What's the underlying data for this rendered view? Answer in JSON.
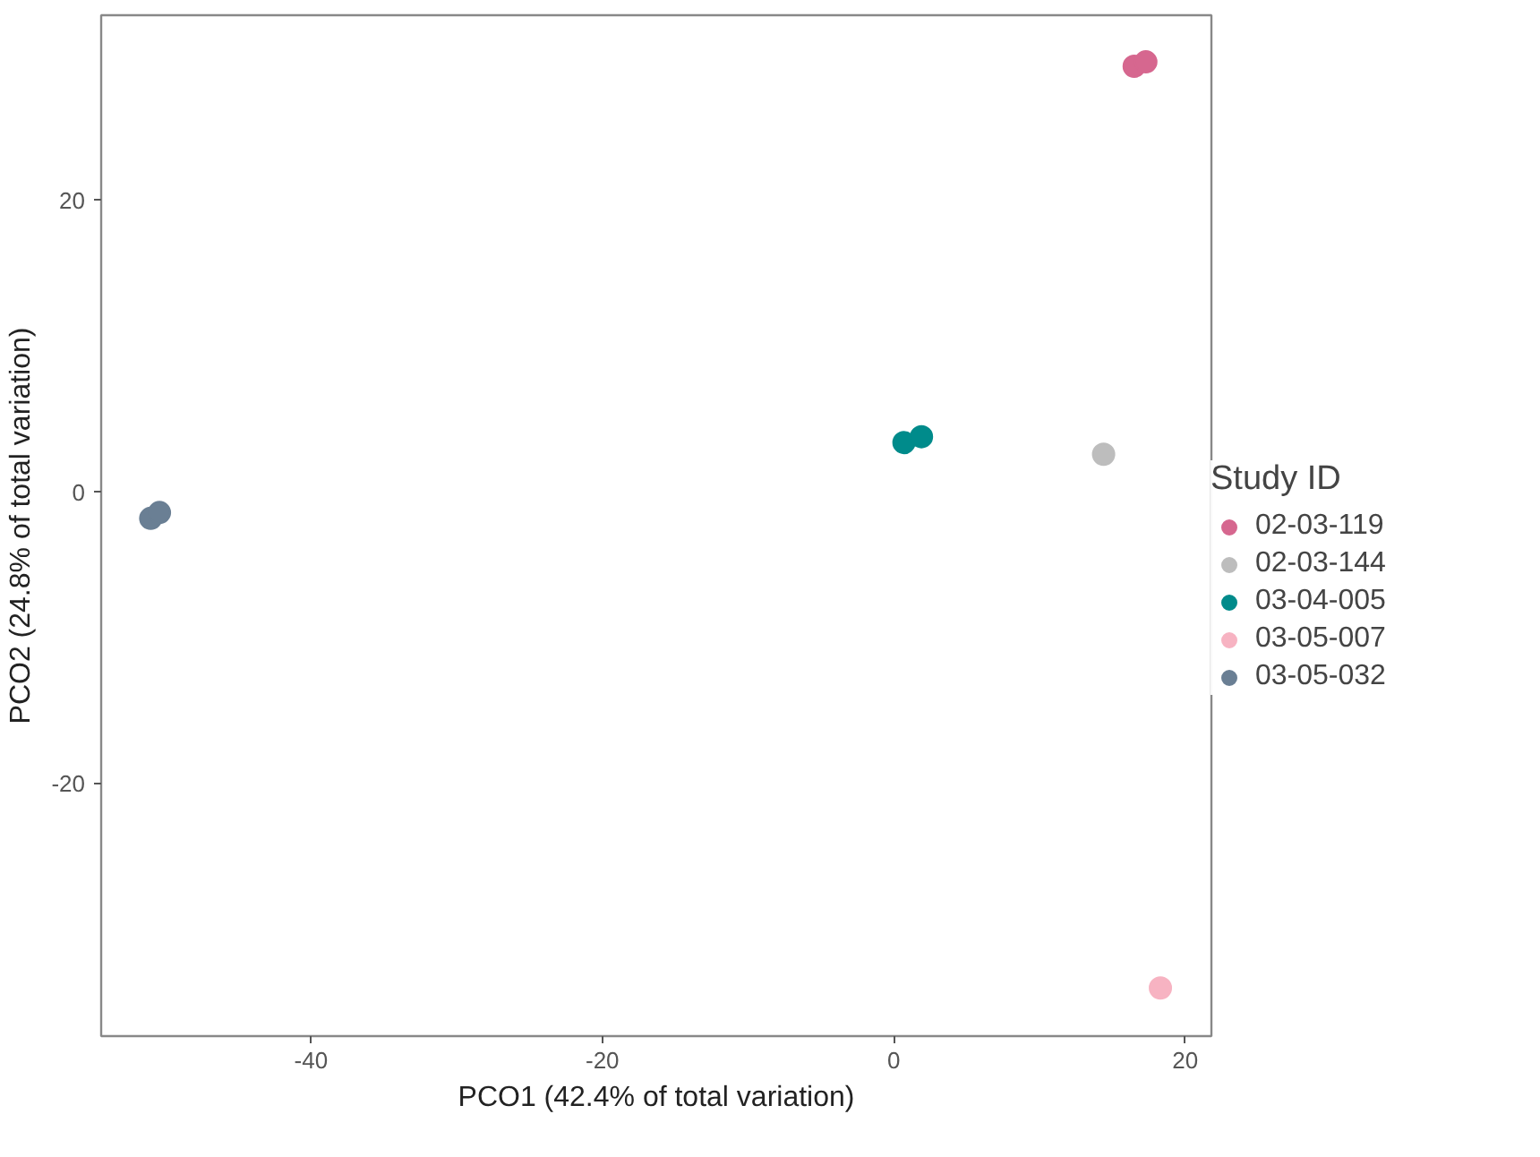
{
  "chart_data": {
    "type": "scatter",
    "xlabel": "PCO1 (42.4% of total variation)",
    "ylabel": "PCO2 (24.8% of total variation)",
    "legend_title": "Study ID",
    "legend": "right",
    "grid": false,
    "marker": "circle",
    "xlim": [
      -54.4,
      21.8
    ],
    "ylim": [
      -37.3,
      32.7
    ],
    "xticks": [
      -40,
      -20,
      0,
      20
    ],
    "yticks": [
      -20,
      0,
      20
    ],
    "series": [
      {
        "name": "02-03-119",
        "color": "#d6678f",
        "x": [
          16.5,
          17.3
        ],
        "values": [
          29.2,
          29.5
        ]
      },
      {
        "name": "02-03-144",
        "color": "#bdbdbd",
        "x": [
          14.4
        ],
        "values": [
          2.6
        ]
      },
      {
        "name": "03-04-005",
        "color": "#008b8b",
        "x": [
          0.7,
          1.9
        ],
        "values": [
          3.4,
          3.8
        ]
      },
      {
        "name": "03-05-007",
        "color": "#f7b3c2",
        "x": [
          18.3
        ],
        "values": [
          -34.0
        ]
      },
      {
        "name": "03-05-032",
        "color": "#6a7f94",
        "x": [
          -51.0,
          -50.4
        ],
        "values": [
          -1.8,
          -1.4
        ]
      }
    ]
  }
}
